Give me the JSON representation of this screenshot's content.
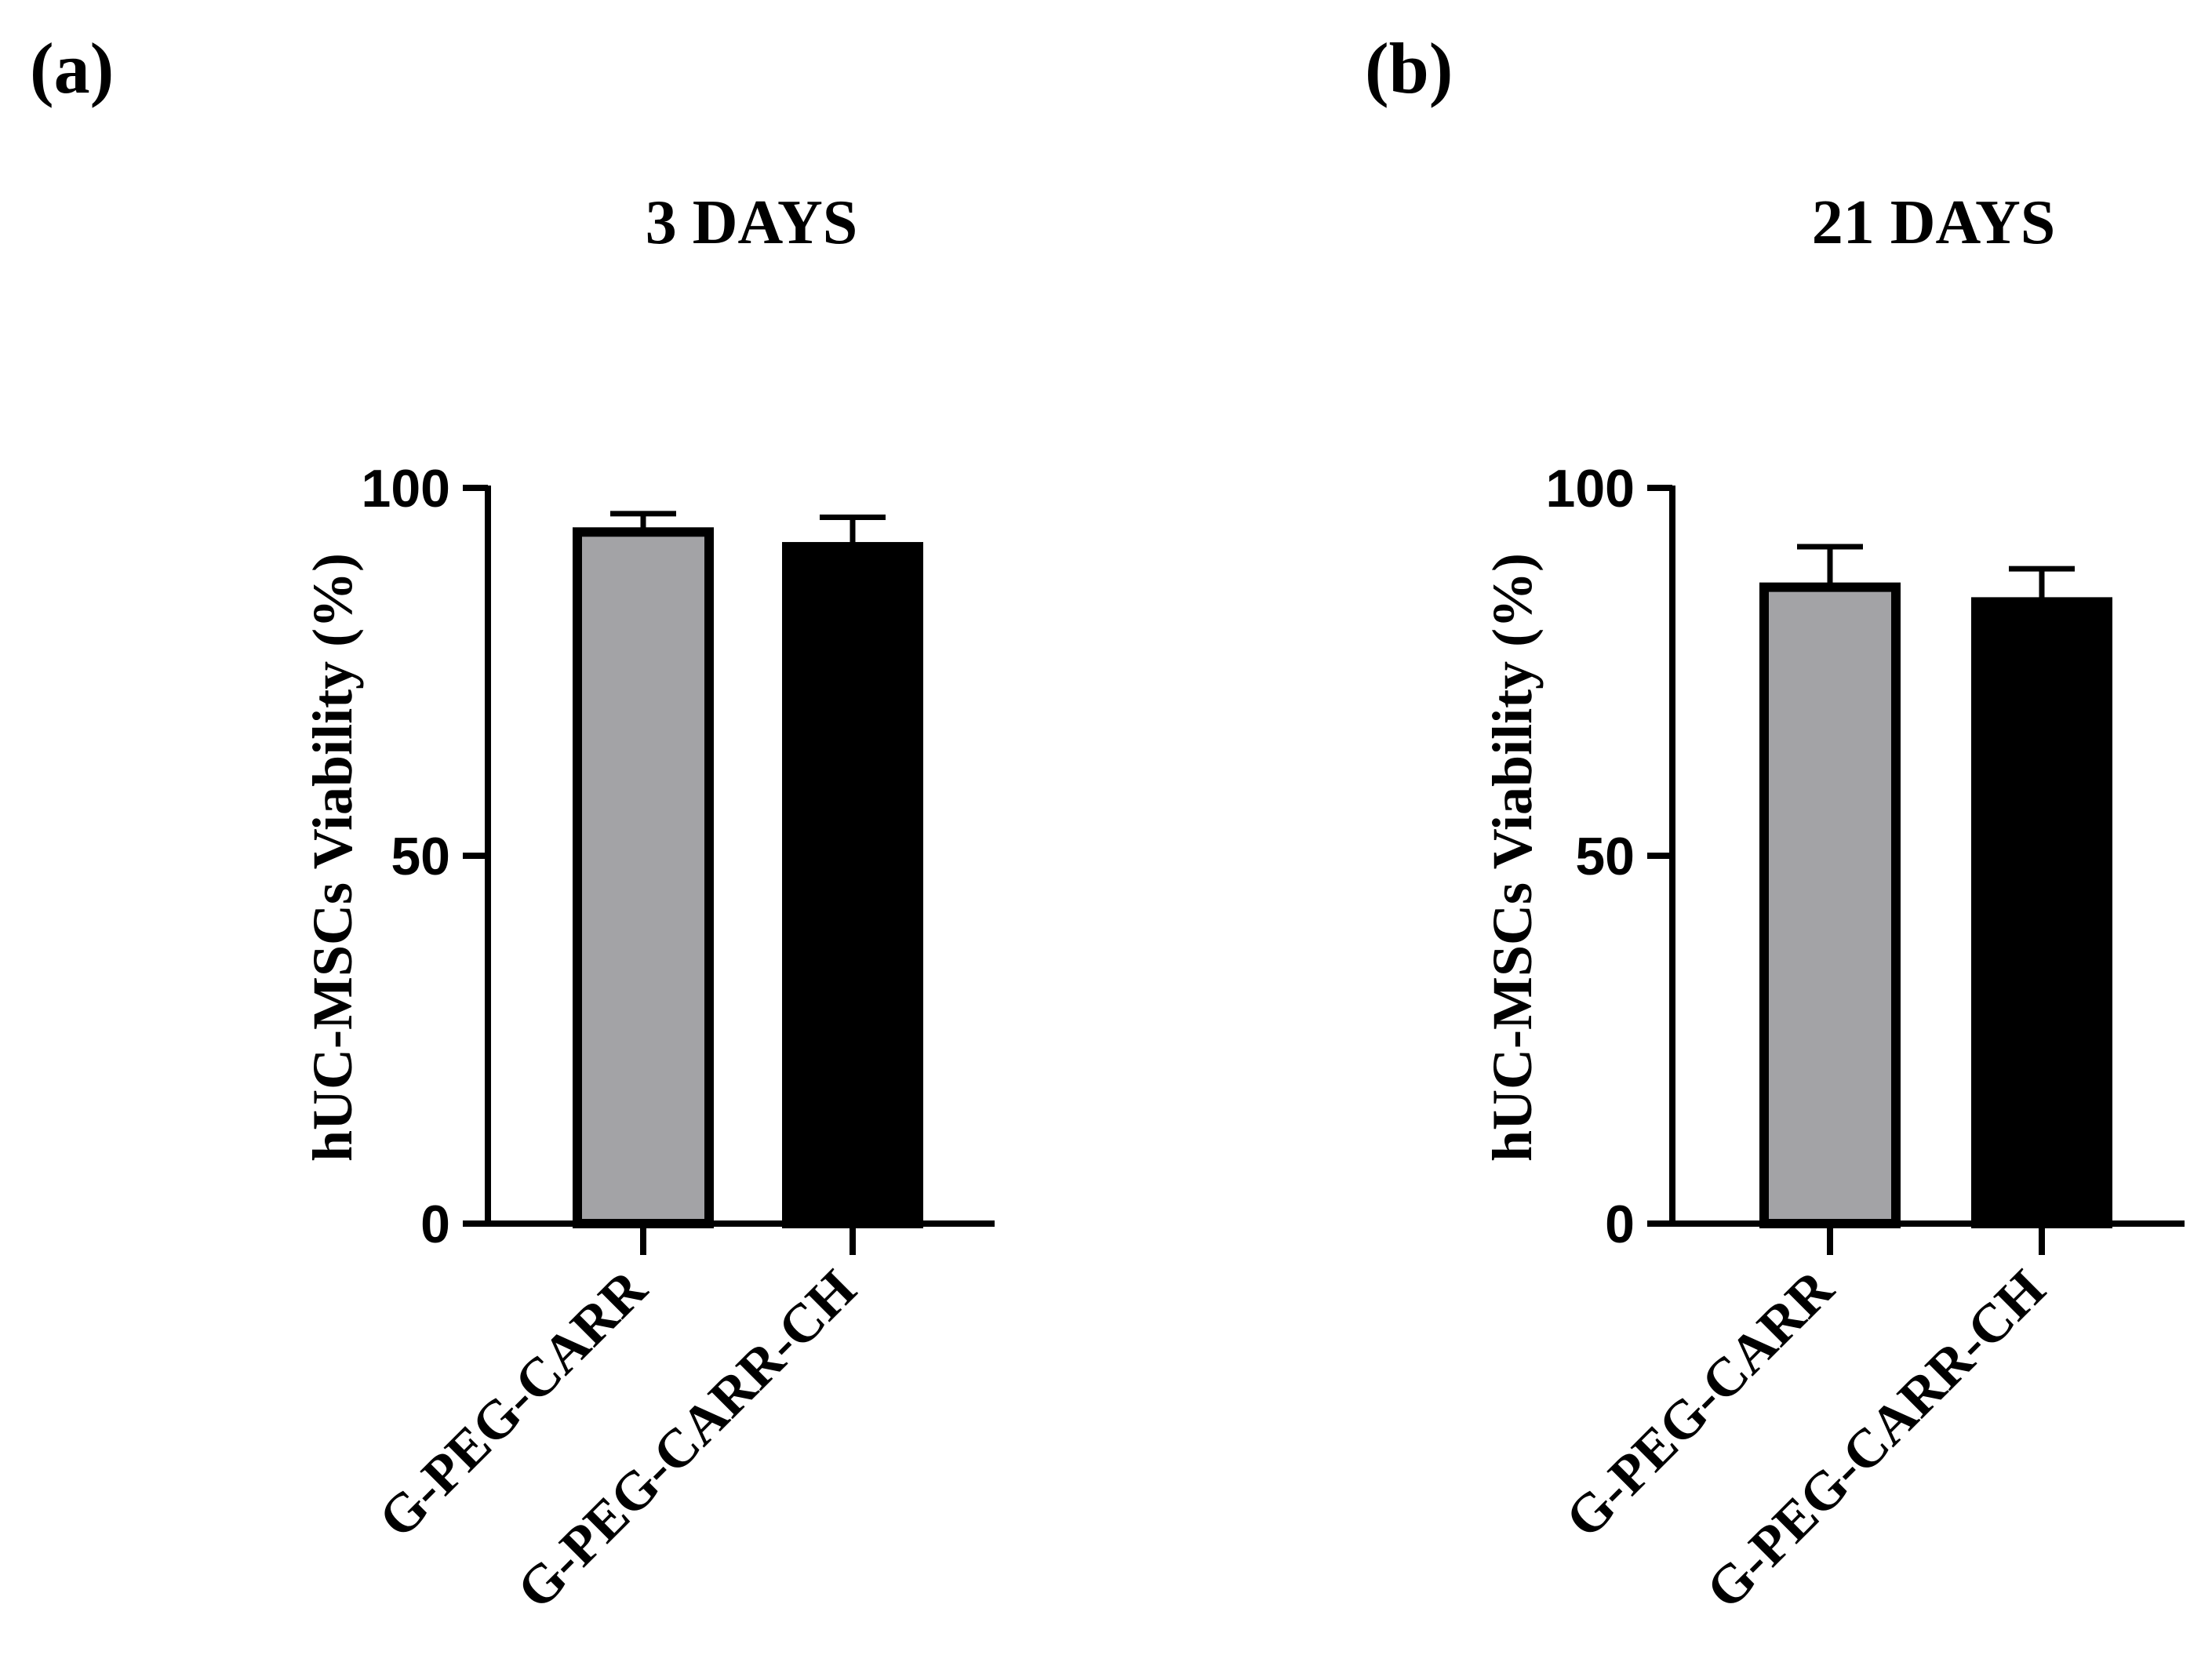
{
  "chart_data": [
    {
      "type": "bar",
      "panel_label": "(a)",
      "title": "3 DAYS",
      "xlabel": "",
      "ylabel": "hUC-MSCs Viability (%)",
      "ylim": [
        0,
        100
      ],
      "yticks": [
        0,
        50,
        100
      ],
      "categories": [
        "G-PEG-CARR",
        "G-PEG-CARR-CH"
      ],
      "values": [
        94,
        92
      ],
      "errors": [
        2.5,
        4
      ],
      "colors": [
        "#a3a3a6",
        "#000000"
      ],
      "grid": false
    },
    {
      "type": "bar",
      "panel_label": "(b)",
      "title": "21 DAYS",
      "xlabel": "",
      "ylabel": "hUC-MSCs Viability (%)",
      "ylim": [
        0,
        100
      ],
      "yticks": [
        0,
        50,
        100
      ],
      "categories": [
        "G-PEG-CARR",
        "G-PEG-CARR-CH"
      ],
      "values": [
        86.5,
        84.5
      ],
      "errors": [
        5.5,
        4.5
      ],
      "colors": [
        "#a3a3a6",
        "#000000"
      ],
      "grid": false
    }
  ]
}
